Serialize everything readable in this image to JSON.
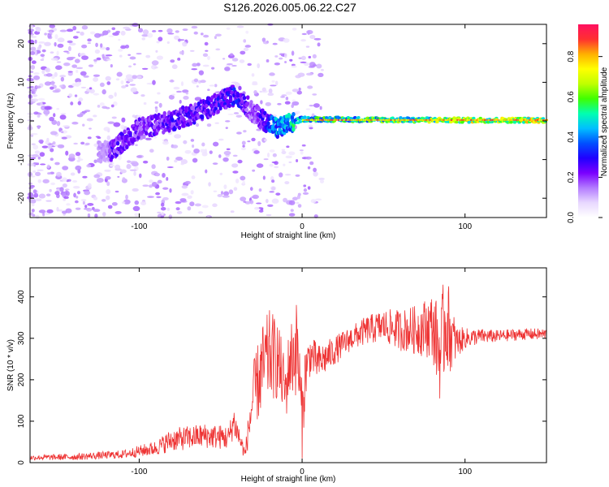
{
  "title": "S126.2026.005.06.22.C27",
  "colors": {
    "snr_line": "#ee3333",
    "axis": "#000000",
    "spec_stops": [
      "#ffffff",
      "#e8d8ff",
      "#b37bff",
      "#7a00ff",
      "#2000ff",
      "#0050ff",
      "#00bfff",
      "#00ffb0",
      "#40ff00",
      "#c0ff00",
      "#ffff00",
      "#ffb000",
      "#ff3030",
      "#ff1060"
    ]
  },
  "chart_data": [
    {
      "type": "heatmap",
      "name": "spectrogram",
      "xlabel": "Height of straight line (km)",
      "ylabel": "Frequency (Hz)",
      "xlim": [
        -167,
        150
      ],
      "ylim": [
        -25,
        25
      ],
      "xticks": [
        -100,
        0,
        100
      ],
      "xtick_labels": [
        "-100",
        "0",
        "100"
      ],
      "yticks": [
        -20,
        -10,
        0,
        10,
        20
      ],
      "ytick_labels": [
        "-20",
        "-10",
        "0",
        "10",
        "20"
      ],
      "colorbar": {
        "label": "Normalized spectral amplitude",
        "range": [
          0,
          0.96
        ],
        "ticks": [
          0.0,
          0.2,
          0.4,
          0.6,
          0.8
        ],
        "tick_labels": [
          "0.0",
          "0.2",
          "0.4",
          "0.6",
          "0.8"
        ]
      },
      "ridge": {
        "description_points": [
          {
            "x": -118,
            "f": -8,
            "amp": 0.3
          },
          {
            "x": -100,
            "f": -2,
            "amp": 0.25
          },
          {
            "x": -80,
            "f": 0,
            "amp": 0.3
          },
          {
            "x": -60,
            "f": 3,
            "amp": 0.3
          },
          {
            "x": -40,
            "f": 7,
            "amp": 0.35
          },
          {
            "x": -30,
            "f": 2,
            "amp": 0.2
          },
          {
            "x": -15,
            "f": -2,
            "amp": 0.5
          },
          {
            "x": 0,
            "f": 0.5,
            "amp": 0.6
          },
          {
            "x": 50,
            "f": 0.3,
            "amp": 0.65
          },
          {
            "x": 100,
            "f": 0.2,
            "amp": 0.8
          },
          {
            "x": 150,
            "f": 0.2,
            "amp": 0.85
          }
        ]
      }
    },
    {
      "type": "line",
      "name": "snr",
      "xlabel": "Height of straight line (km)",
      "ylabel": "SNR (10 * v/v)",
      "xlim": [
        -167,
        150
      ],
      "ylim": [
        0,
        470
      ],
      "xticks": [
        -100,
        0,
        100
      ],
      "xtick_labels": [
        "-100",
        "0",
        "100"
      ],
      "yticks": [
        0,
        100,
        200,
        300,
        400
      ],
      "ytick_labels": [
        "0",
        "100",
        "200",
        "300",
        "400"
      ],
      "envelope": {
        "x": [
          -167,
          -140,
          -110,
          -90,
          -80,
          -60,
          -45,
          -42,
          -35,
          -30,
          -25,
          -20,
          -15,
          -10,
          -8,
          -3,
          0,
          2,
          5,
          10,
          20,
          30,
          40,
          50,
          60,
          70,
          80,
          85,
          88,
          92,
          95,
          100,
          110,
          120,
          135,
          150
        ],
        "y": [
          12,
          14,
          20,
          35,
          55,
          65,
          60,
          100,
          20,
          160,
          220,
          260,
          250,
          170,
          240,
          280,
          100,
          220,
          260,
          240,
          270,
          300,
          320,
          330,
          320,
          320,
          330,
          260,
          350,
          300,
          290,
          300,
          305,
          305,
          310,
          310
        ],
        "noise": [
          6,
          8,
          10,
          18,
          28,
          30,
          30,
          40,
          14,
          80,
          110,
          110,
          100,
          70,
          90,
          120,
          90,
          70,
          50,
          45,
          35,
          30,
          35,
          40,
          50,
          60,
          80,
          120,
          130,
          80,
          40,
          25,
          18,
          15,
          14,
          14
        ]
      }
    }
  ]
}
